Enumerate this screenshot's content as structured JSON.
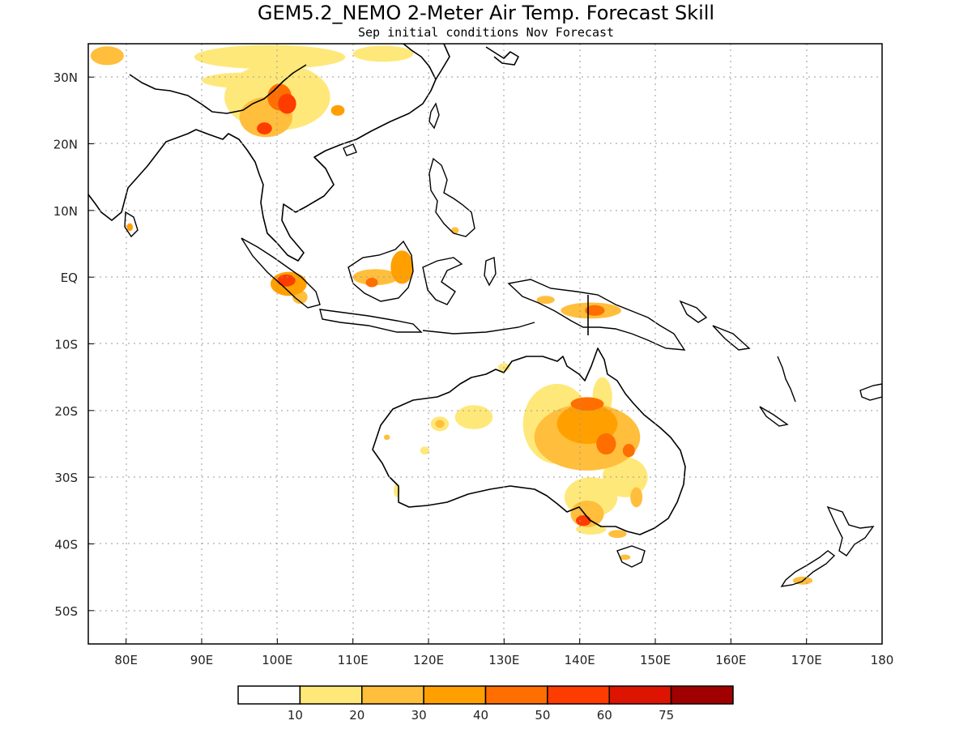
{
  "title": "GEM5.2_NEMO 2-Meter Air Temp. Forecast Skill",
  "subtitle": "Sep initial conditions  Nov Forecast",
  "colors": {
    "level_10": "#ffe87a",
    "level_20": "#ffbe3c",
    "level_30": "#ffa000",
    "level_40": "#ff6e00",
    "level_50": "#ff3c00",
    "level_60": "#dc1400",
    "level_75": "#a00000"
  },
  "chart_data": {
    "type": "heatmap",
    "title": "GEM5.2_NEMO 2-Meter Air Temp. Forecast Skill",
    "subtitle": "Sep initial conditions  Nov Forecast",
    "x_ticks": [
      "80E",
      "90E",
      "100E",
      "110E",
      "120E",
      "130E",
      "140E",
      "150E",
      "160E",
      "170E",
      "180"
    ],
    "x_values": [
      80,
      90,
      100,
      110,
      120,
      130,
      140,
      150,
      160,
      170,
      180
    ],
    "y_ticks": [
      "30N",
      "20N",
      "10N",
      "EQ",
      "10S",
      "20S",
      "30S",
      "40S",
      "50S"
    ],
    "y_values": [
      30,
      20,
      10,
      0,
      -10,
      -20,
      -30,
      -40,
      -50
    ],
    "xlim": [
      75,
      180
    ],
    "ylim": [
      -55,
      35
    ],
    "grid": true,
    "colorbar": {
      "labels": [
        "10",
        "20",
        "30",
        "40",
        "50",
        "60",
        "75"
      ],
      "thresholds": [
        10,
        20,
        30,
        40,
        50,
        60,
        75
      ],
      "colors": [
        "#ffffff",
        "#ffe87a",
        "#ffbe3c",
        "#ffa000",
        "#ff6e00",
        "#ff3c00",
        "#dc1400",
        "#a00000"
      ]
    },
    "regions": [
      {
        "lon": 100,
        "lat": 27,
        "rx": 7,
        "ry": 5,
        "level": 10
      },
      {
        "lon": 98.5,
        "lat": 24,
        "rx": 3.5,
        "ry": 3,
        "level": 20
      },
      {
        "lon": 100.3,
        "lat": 27,
        "rx": 1.6,
        "ry": 2,
        "level": 40
      },
      {
        "lon": 101.3,
        "lat": 26,
        "rx": 1.2,
        "ry": 1.5,
        "level": 50
      },
      {
        "lon": 98.3,
        "lat": 22.3,
        "rx": 1,
        "ry": 0.9,
        "level": 50
      },
      {
        "lon": 99,
        "lat": 33,
        "rx": 10,
        "ry": 1.8,
        "level": 10
      },
      {
        "lon": 114,
        "lat": 33.5,
        "rx": 4,
        "ry": 1.2,
        "level": 10
      },
      {
        "lon": 77.5,
        "lat": 33.2,
        "rx": 2.2,
        "ry": 1.4,
        "level": 20
      },
      {
        "lon": 96,
        "lat": 29.5,
        "rx": 6,
        "ry": 1.2,
        "level": 10
      },
      {
        "lon": 108,
        "lat": 25,
        "rx": 0.9,
        "ry": 0.8,
        "level": 30
      },
      {
        "lon": 101.5,
        "lat": -1,
        "rx": 2.4,
        "ry": 1.8,
        "level": 30
      },
      {
        "lon": 101.2,
        "lat": -0.5,
        "rx": 1.2,
        "ry": 0.9,
        "level": 50
      },
      {
        "lon": 103,
        "lat": -3,
        "rx": 1,
        "ry": 1,
        "level": 20
      },
      {
        "lon": 113,
        "lat": 0,
        "rx": 3,
        "ry": 1.2,
        "level": 20
      },
      {
        "lon": 116.5,
        "lat": 1.5,
        "rx": 1.5,
        "ry": 2.5,
        "level": 30
      },
      {
        "lon": 112.5,
        "lat": -0.8,
        "rx": 0.8,
        "ry": 0.7,
        "level": 40
      },
      {
        "lon": 141.5,
        "lat": -5,
        "rx": 4,
        "ry": 1.2,
        "level": 20
      },
      {
        "lon": 142,
        "lat": -5,
        "rx": 1.3,
        "ry": 0.8,
        "level": 40
      },
      {
        "lon": 135.5,
        "lat": -3.4,
        "rx": 1.2,
        "ry": 0.6,
        "level": 20
      },
      {
        "lon": 80.5,
        "lat": 7.5,
        "rx": 0.4,
        "ry": 0.6,
        "level": 30
      },
      {
        "lon": 123.5,
        "lat": 7,
        "rx": 0.5,
        "ry": 0.5,
        "level": 20
      },
      {
        "lon": 143,
        "lat": -18,
        "rx": 1.3,
        "ry": 3,
        "level": 10
      },
      {
        "lon": 137,
        "lat": -22,
        "rx": 4.5,
        "ry": 6,
        "level": 10
      },
      {
        "lon": 141,
        "lat": -24,
        "rx": 7,
        "ry": 5,
        "level": 20
      },
      {
        "lon": 141,
        "lat": -22,
        "rx": 4,
        "ry": 3,
        "level": 30
      },
      {
        "lon": 141,
        "lat": -19,
        "rx": 2.2,
        "ry": 1,
        "level": 40
      },
      {
        "lon": 143.5,
        "lat": -25,
        "rx": 1.3,
        "ry": 1.6,
        "level": 40
      },
      {
        "lon": 146.5,
        "lat": -26,
        "rx": 0.8,
        "ry": 1,
        "level": 40
      },
      {
        "lon": 141.5,
        "lat": -33,
        "rx": 3.5,
        "ry": 3,
        "level": 10
      },
      {
        "lon": 146,
        "lat": -30,
        "rx": 3,
        "ry": 3,
        "level": 10
      },
      {
        "lon": 141,
        "lat": -35.5,
        "rx": 2.2,
        "ry": 2,
        "level": 20
      },
      {
        "lon": 140.5,
        "lat": -36.5,
        "rx": 1,
        "ry": 0.8,
        "level": 50
      },
      {
        "lon": 141.5,
        "lat": -37.8,
        "rx": 2,
        "ry": 0.8,
        "level": 10
      },
      {
        "lon": 147.5,
        "lat": -33,
        "rx": 0.8,
        "ry": 1.5,
        "level": 20
      },
      {
        "lon": 145,
        "lat": -38.5,
        "rx": 1.2,
        "ry": 0.6,
        "level": 20
      },
      {
        "lon": 126,
        "lat": -21,
        "rx": 2.5,
        "ry": 1.8,
        "level": 10
      },
      {
        "lon": 121.5,
        "lat": -22,
        "rx": 1.2,
        "ry": 1.1,
        "level": 10
      },
      {
        "lon": 121.5,
        "lat": -22,
        "rx": 0.6,
        "ry": 0.6,
        "level": 20
      },
      {
        "lon": 119.5,
        "lat": -26,
        "rx": 0.6,
        "ry": 0.6,
        "level": 10
      },
      {
        "lon": 115.8,
        "lat": -32,
        "rx": 0.4,
        "ry": 1,
        "level": 10
      },
      {
        "lon": 114.5,
        "lat": -24,
        "rx": 0.4,
        "ry": 0.4,
        "level": 20
      },
      {
        "lon": 146,
        "lat": -42,
        "rx": 0.7,
        "ry": 0.4,
        "level": 20
      },
      {
        "lon": 169.5,
        "lat": -45.5,
        "rx": 1.3,
        "ry": 0.6,
        "level": 20
      },
      {
        "lon": 130,
        "lat": -13.5,
        "rx": 0.8,
        "ry": 0.6,
        "level": 10
      }
    ]
  }
}
